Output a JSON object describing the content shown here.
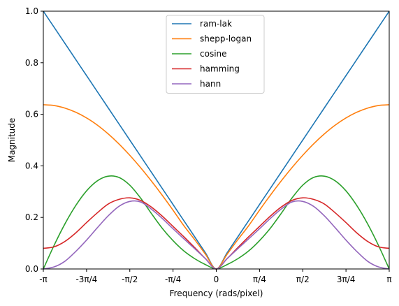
{
  "chart_data": {
    "type": "line",
    "title": "",
    "xlabel": "Frequency (rads/pixel)",
    "ylabel": "Magnitude",
    "xlim": [
      -3.14159265,
      3.14159265
    ],
    "ylim": [
      0,
      1.0
    ],
    "x_ticks": [
      {
        "value": -3.14159265,
        "label": "-π"
      },
      {
        "value": -2.35619449,
        "label": "-3π/4"
      },
      {
        "value": -1.57079633,
        "label": "-π/2"
      },
      {
        "value": -0.78539816,
        "label": "-π/4"
      },
      {
        "value": 0,
        "label": "0"
      },
      {
        "value": 0.78539816,
        "label": "π/4"
      },
      {
        "value": 1.57079633,
        "label": "π/2"
      },
      {
        "value": 2.35619449,
        "label": "3π/4"
      },
      {
        "value": 3.14159265,
        "label": "π"
      }
    ],
    "y_ticks": [
      {
        "value": 0.0,
        "label": "0.0"
      },
      {
        "value": 0.2,
        "label": "0.2"
      },
      {
        "value": 0.4,
        "label": "0.4"
      },
      {
        "value": 0.6,
        "label": "0.6"
      },
      {
        "value": 0.8,
        "label": "0.8"
      },
      {
        "value": 1.0,
        "label": "1.0"
      }
    ],
    "grid": false,
    "legend_position": "top-center",
    "x": [
      -3.14159,
      -2.94524,
      -2.74889,
      -2.55254,
      -2.35619,
      -2.15984,
      -1.9635,
      -1.76715,
      -1.5708,
      -1.37445,
      -1.1781,
      -0.98175,
      -0.7854,
      -0.58905,
      -0.3927,
      -0.19635,
      0,
      0.19635,
      0.3927,
      0.58905,
      0.7854,
      0.98175,
      1.1781,
      1.37445,
      1.5708,
      1.76715,
      1.9635,
      2.15984,
      2.35619,
      2.55254,
      2.74889,
      2.94524,
      3.14159
    ],
    "series": [
      {
        "name": "ram-lak",
        "color": "#1f77b4",
        "values": [
          1.0,
          0.9375,
          0.875,
          0.8125,
          0.75,
          0.6875,
          0.625,
          0.5625,
          0.5,
          0.4375,
          0.375,
          0.3125,
          0.25,
          0.1875,
          0.125,
          0.0625,
          0.0,
          0.0625,
          0.125,
          0.1875,
          0.25,
          0.3125,
          0.375,
          0.4375,
          0.5,
          0.5625,
          0.625,
          0.6875,
          0.75,
          0.8125,
          0.875,
          0.9375,
          1.0
        ]
      },
      {
        "name": "shepp-logan",
        "color": "#ff7f0e",
        "values": [
          0.637,
          0.634,
          0.624,
          0.608,
          0.586,
          0.558,
          0.524,
          0.485,
          0.441,
          0.393,
          0.341,
          0.286,
          0.228,
          0.168,
          0.114,
          0.057,
          0.0,
          0.057,
          0.114,
          0.168,
          0.228,
          0.286,
          0.341,
          0.393,
          0.441,
          0.485,
          0.524,
          0.558,
          0.586,
          0.608,
          0.624,
          0.634,
          0.637
        ]
      },
      {
        "name": "cosine",
        "color": "#2ca02c",
        "values": [
          0.0,
          0.092,
          0.175,
          0.246,
          0.303,
          0.342,
          0.36,
          0.355,
          0.325,
          0.275,
          0.215,
          0.158,
          0.11,
          0.07,
          0.04,
          0.017,
          0.0,
          0.017,
          0.04,
          0.07,
          0.11,
          0.158,
          0.215,
          0.275,
          0.325,
          0.355,
          0.36,
          0.342,
          0.303,
          0.246,
          0.175,
          0.092,
          0.0
        ]
      },
      {
        "name": "hamming",
        "color": "#d62728",
        "values": [
          0.08,
          0.086,
          0.107,
          0.14,
          0.18,
          0.218,
          0.252,
          0.27,
          0.276,
          0.266,
          0.24,
          0.205,
          0.165,
          0.125,
          0.083,
          0.04,
          0.0,
          0.04,
          0.083,
          0.125,
          0.165,
          0.205,
          0.24,
          0.266,
          0.276,
          0.27,
          0.252,
          0.218,
          0.18,
          0.14,
          0.107,
          0.086,
          0.08
        ]
      },
      {
        "name": "hann",
        "color": "#9467bd",
        "values": [
          0.0,
          0.008,
          0.03,
          0.068,
          0.112,
          0.16,
          0.206,
          0.243,
          0.262,
          0.26,
          0.232,
          0.196,
          0.156,
          0.117,
          0.079,
          0.04,
          0.0,
          0.04,
          0.079,
          0.117,
          0.156,
          0.196,
          0.232,
          0.26,
          0.262,
          0.243,
          0.206,
          0.16,
          0.112,
          0.068,
          0.03,
          0.008,
          0.0
        ]
      }
    ]
  }
}
